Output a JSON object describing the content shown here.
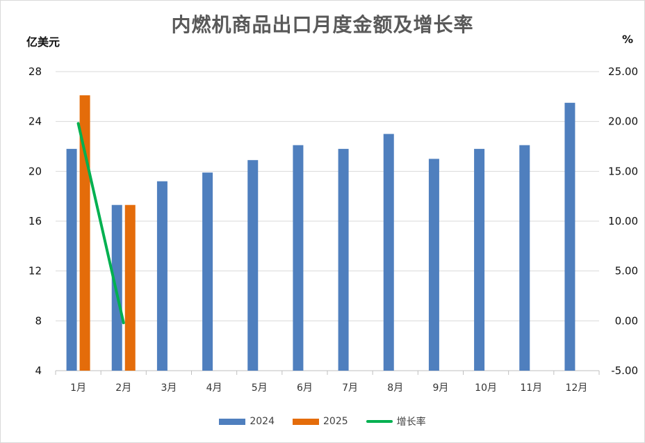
{
  "chart_data": {
    "type": "bar",
    "title": "内燃机商品出口月度金额及增长率",
    "ylabel": "亿美元",
    "y2label": "%",
    "categories": [
      "1月",
      "2月",
      "3月",
      "4月",
      "5月",
      "6月",
      "7月",
      "8月",
      "9月",
      "10月",
      "11月",
      "12月"
    ],
    "ylim": [
      4,
      28
    ],
    "yticks": [
      "4",
      "8",
      "12",
      "16",
      "20",
      "24",
      "28"
    ],
    "y2lim": [
      -5,
      25
    ],
    "y2ticks": [
      "-5.00",
      "0.00",
      "5.00",
      "10.00",
      "15.00",
      "20.00",
      "25.00"
    ],
    "grid": true,
    "legend_position": "bottom",
    "series": [
      {
        "name": "2024",
        "kind": "bar",
        "axis": "left",
        "color": "#4F7FBE",
        "values": [
          21.8,
          17.3,
          19.2,
          19.9,
          20.9,
          22.1,
          21.8,
          23.0,
          21.0,
          21.8,
          22.1,
          25.5
        ]
      },
      {
        "name": "2025",
        "kind": "bar",
        "axis": "left",
        "color": "#E46C0A",
        "values": [
          26.1,
          17.3,
          null,
          null,
          null,
          null,
          null,
          null,
          null,
          null,
          null,
          null
        ]
      },
      {
        "name": "增长率",
        "kind": "line",
        "axis": "right",
        "color": "#00B050",
        "values": [
          19.8,
          -0.2,
          null,
          null,
          null,
          null,
          null,
          null,
          null,
          null,
          null,
          null
        ]
      }
    ]
  }
}
